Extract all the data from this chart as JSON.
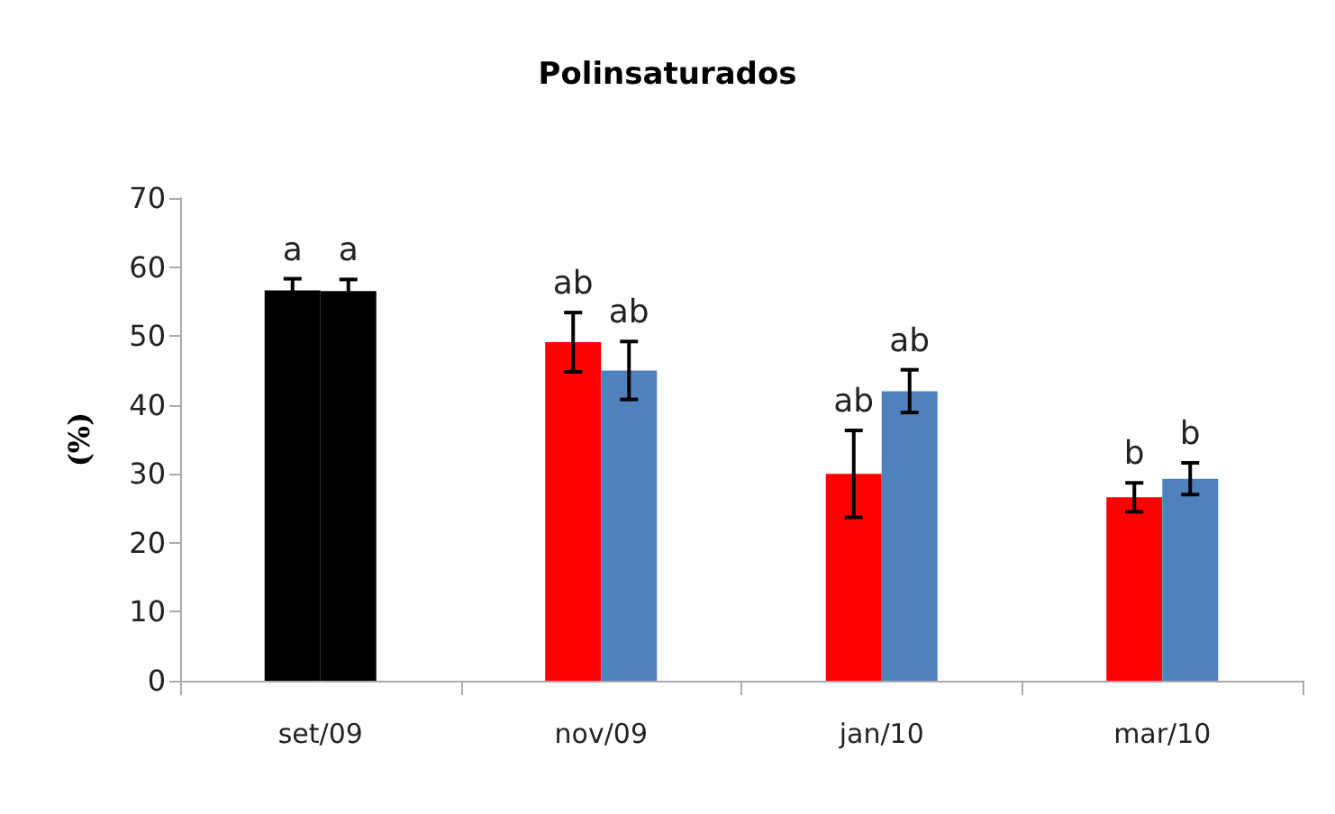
{
  "chart_data": {
    "type": "bar",
    "title": "Polinsaturados",
    "ylabel": "(%)",
    "categories": [
      "set/09",
      "nov/09",
      "jan/10",
      "mar/10"
    ],
    "series": [
      {
        "colors": [
          "#000000",
          "#ff0000",
          "#ff0000",
          "#ff0000"
        ],
        "values": [
          56.6,
          49.1,
          30.0,
          26.6
        ],
        "errors": [
          1.7,
          4.3,
          6.3,
          2.1
        ]
      },
      {
        "colors": [
          "#000000",
          "#4f81bd",
          "#4f81bd",
          "#4f81bd"
        ],
        "values": [
          56.5,
          45.0,
          42.0,
          29.3
        ],
        "errors": [
          1.7,
          4.2,
          3.1,
          2.3
        ]
      }
    ],
    "ylim": [
      0,
      70
    ],
    "yticks": [
      0,
      10,
      20,
      30,
      40,
      50,
      60,
      70
    ],
    "grid": false,
    "annotations": [
      "a",
      "a",
      "ab",
      "ab",
      "ab",
      "ab",
      "b",
      "b"
    ]
  }
}
